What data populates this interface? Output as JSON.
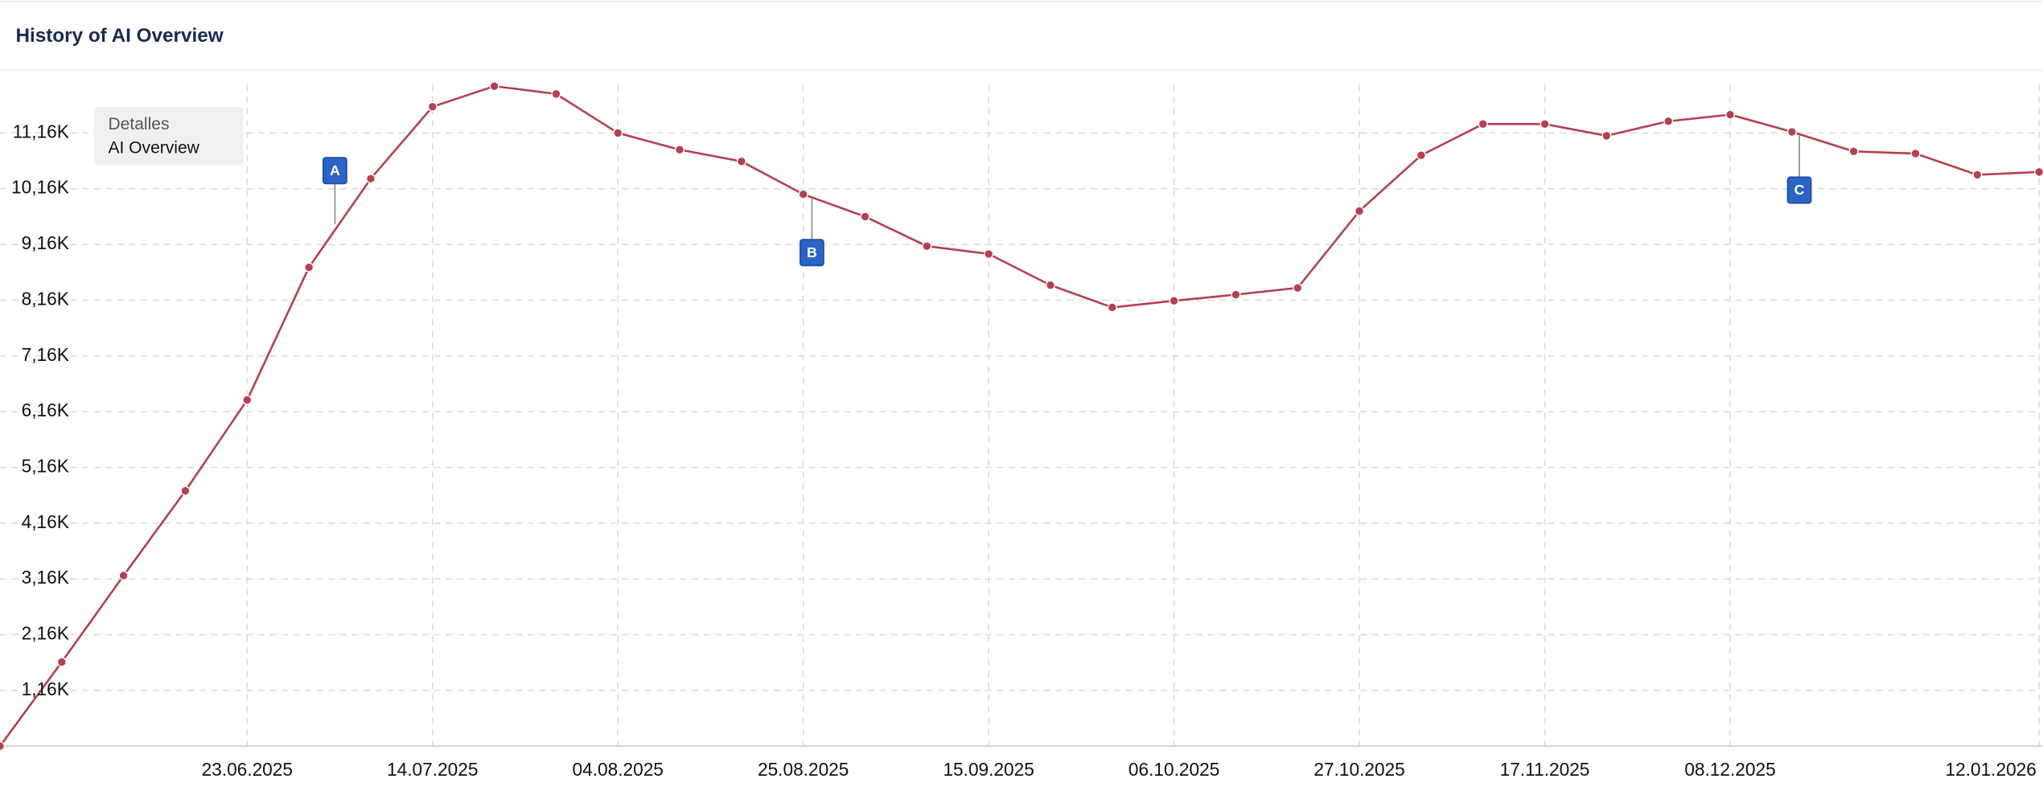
{
  "chart_data": {
    "type": "line",
    "title": "History of AI Overview",
    "legend_title": "Detalles",
    "categories": [
      null,
      null,
      null,
      null,
      "23.06.2025",
      null,
      null,
      "14.07.2025",
      null,
      null,
      "04.08.2025",
      null,
      null,
      "25.08.2025",
      null,
      null,
      "15.09.2025",
      null,
      null,
      "06.10.2025",
      null,
      null,
      "27.10.2025",
      null,
      null,
      "17.11.2025",
      null,
      null,
      "08.12.2025",
      null,
      null,
      null,
      null,
      "12.01.2026"
    ],
    "series": [
      {
        "name": "AI Overview",
        "color": "#b5404f",
        "values": [
          160,
          1670,
          3220,
          4740,
          6370,
          8750,
          10340,
          11630,
          12000,
          11860,
          11160,
          10860,
          10650,
          10060,
          9660,
          9130,
          8990,
          8430,
          8030,
          8150,
          8260,
          8380,
          9760,
          10760,
          11320,
          11320,
          11110,
          11370,
          11490,
          11180,
          10830,
          10790,
          10410,
          10460
        ]
      }
    ],
    "ylim": [
      160,
      12260
    ],
    "yticks": [
      {
        "value": 1160,
        "label": "1,16K"
      },
      {
        "value": 2160,
        "label": "2,16K"
      },
      {
        "value": 3160,
        "label": "3,16K"
      },
      {
        "value": 4160,
        "label": "4,16K"
      },
      {
        "value": 5160,
        "label": "5,16K"
      },
      {
        "value": 6160,
        "label": "6,16K"
      },
      {
        "value": 7160,
        "label": "7,16K"
      },
      {
        "value": 8160,
        "label": "8,16K"
      },
      {
        "value": 9160,
        "label": "9,16K"
      },
      {
        "value": 10160,
        "label": "10,16K"
      },
      {
        "value": 11160,
        "label": "11,16K"
      }
    ],
    "grid": true,
    "annotations": [
      "A",
      "B",
      "C"
    ]
  }
}
